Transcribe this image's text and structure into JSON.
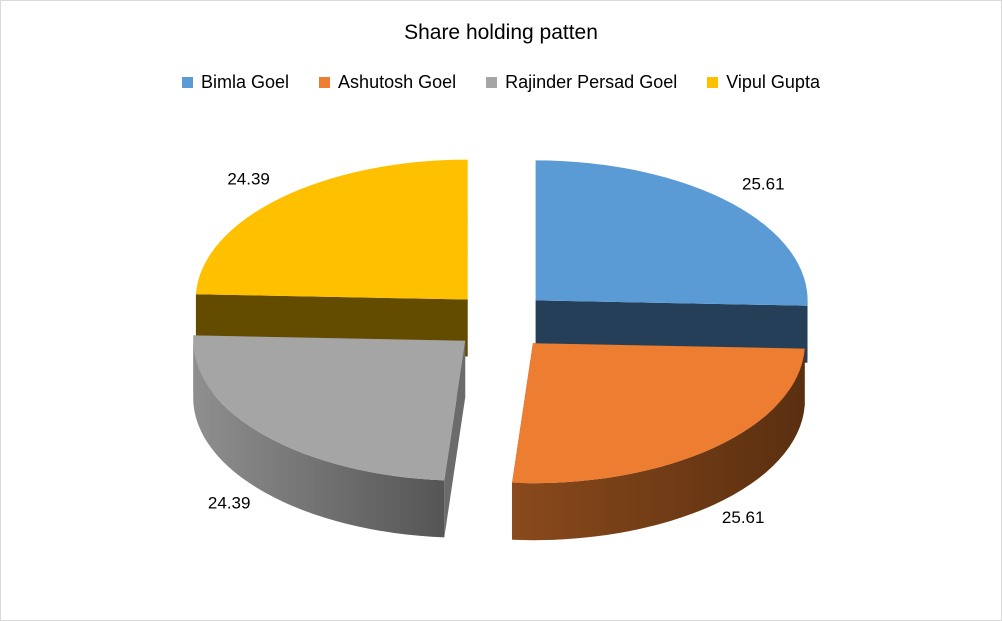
{
  "chart_data": {
    "type": "pie",
    "title": "Share holding patten",
    "categories": [
      "Bimla Goel",
      "Ashutosh Goel",
      "Rajinder Persad Goel",
      "Vipul Gupta"
    ],
    "values": [
      25.61,
      25.61,
      24.39,
      24.39
    ],
    "data_labels": [
      "25.61",
      "25.61",
      "24.39",
      "24.39"
    ],
    "colors": [
      "#5b9bd5",
      "#ed7d31",
      "#a5a5a5",
      "#ffc000"
    ],
    "side_colors": [
      "#243f57",
      "#6e3a16",
      "#6b6b6b",
      "#634b00"
    ],
    "legend_position": "top",
    "style": "3d-exploded"
  }
}
